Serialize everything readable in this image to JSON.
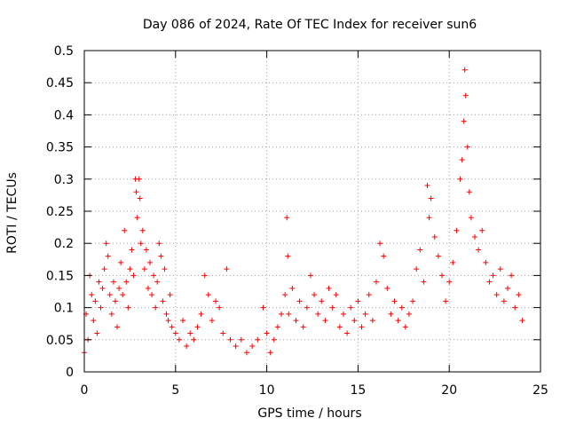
{
  "chart_data": {
    "type": "scatter",
    "title": "Day 086 of 2024, Rate Of TEC Index for receiver sun6",
    "xlabel": "GPS time / hours",
    "ylabel": "ROTI / TECUs",
    "xlim": [
      0,
      25
    ],
    "ylim": [
      0,
      0.5
    ],
    "xticks": [
      "0",
      "5",
      "10",
      "15",
      "20",
      "25"
    ],
    "yticks": [
      "0",
      "0.05",
      "0.1",
      "0.15",
      "0.2",
      "0.25",
      "0.3",
      "0.35",
      "0.4",
      "0.45",
      "0.5"
    ],
    "grid": true,
    "marker": "+",
    "color": "#ff0000",
    "series": [
      {
        "values": [
          [
            0.0,
            0.03
          ],
          [
            0.1,
            0.09
          ],
          [
            0.2,
            0.05
          ],
          [
            0.3,
            0.15
          ],
          [
            0.4,
            0.12
          ],
          [
            0.5,
            0.08
          ],
          [
            0.6,
            0.11
          ],
          [
            0.7,
            0.06
          ],
          [
            0.8,
            0.14
          ],
          [
            0.9,
            0.1
          ],
          [
            1.0,
            0.13
          ],
          [
            1.1,
            0.16
          ],
          [
            1.2,
            0.2
          ],
          [
            1.3,
            0.18
          ],
          [
            1.4,
            0.12
          ],
          [
            1.5,
            0.09
          ],
          [
            1.6,
            0.14
          ],
          [
            1.7,
            0.11
          ],
          [
            1.8,
            0.07
          ],
          [
            1.9,
            0.13
          ],
          [
            2.0,
            0.17
          ],
          [
            2.1,
            0.12
          ],
          [
            2.2,
            0.22
          ],
          [
            2.3,
            0.14
          ],
          [
            2.4,
            0.1
          ],
          [
            2.5,
            0.16
          ],
          [
            2.6,
            0.19
          ],
          [
            2.7,
            0.15
          ],
          [
            2.8,
            0.3
          ],
          [
            2.85,
            0.28
          ],
          [
            2.9,
            0.24
          ],
          [
            3.0,
            0.3
          ],
          [
            3.05,
            0.27
          ],
          [
            3.1,
            0.2
          ],
          [
            3.2,
            0.22
          ],
          [
            3.3,
            0.16
          ],
          [
            3.4,
            0.19
          ],
          [
            3.5,
            0.13
          ],
          [
            3.6,
            0.17
          ],
          [
            3.7,
            0.12
          ],
          [
            3.8,
            0.15
          ],
          [
            3.9,
            0.1
          ],
          [
            4.0,
            0.14
          ],
          [
            4.1,
            0.2
          ],
          [
            4.2,
            0.18
          ],
          [
            4.3,
            0.11
          ],
          [
            4.4,
            0.16
          ],
          [
            4.5,
            0.09
          ],
          [
            4.6,
            0.08
          ],
          [
            4.7,
            0.12
          ],
          [
            4.8,
            0.07
          ],
          [
            5.0,
            0.06
          ],
          [
            5.2,
            0.05
          ],
          [
            5.4,
            0.08
          ],
          [
            5.6,
            0.04
          ],
          [
            5.8,
            0.06
          ],
          [
            6.0,
            0.05
          ],
          [
            6.2,
            0.07
          ],
          [
            6.4,
            0.09
          ],
          [
            6.6,
            0.15
          ],
          [
            6.8,
            0.12
          ],
          [
            7.0,
            0.08
          ],
          [
            7.2,
            0.11
          ],
          [
            7.4,
            0.1
          ],
          [
            7.6,
            0.06
          ],
          [
            7.8,
            0.16
          ],
          [
            8.0,
            0.05
          ],
          [
            8.3,
            0.04
          ],
          [
            8.6,
            0.05
          ],
          [
            8.9,
            0.03
          ],
          [
            9.2,
            0.04
          ],
          [
            9.5,
            0.05
          ],
          [
            9.8,
            0.1
          ],
          [
            10.0,
            0.06
          ],
          [
            10.2,
            0.03
          ],
          [
            10.4,
            0.05
          ],
          [
            10.6,
            0.07
          ],
          [
            10.8,
            0.09
          ],
          [
            11.0,
            0.12
          ],
          [
            11.1,
            0.24
          ],
          [
            11.15,
            0.18
          ],
          [
            11.2,
            0.09
          ],
          [
            11.4,
            0.13
          ],
          [
            11.6,
            0.08
          ],
          [
            11.8,
            0.11
          ],
          [
            12.0,
            0.07
          ],
          [
            12.2,
            0.1
          ],
          [
            12.4,
            0.15
          ],
          [
            12.6,
            0.12
          ],
          [
            12.8,
            0.09
          ],
          [
            13.0,
            0.11
          ],
          [
            13.2,
            0.08
          ],
          [
            13.4,
            0.13
          ],
          [
            13.6,
            0.1
          ],
          [
            13.8,
            0.12
          ],
          [
            14.0,
            0.07
          ],
          [
            14.2,
            0.09
          ],
          [
            14.4,
            0.06
          ],
          [
            14.6,
            0.1
          ],
          [
            14.8,
            0.08
          ],
          [
            15.0,
            0.11
          ],
          [
            15.2,
            0.07
          ],
          [
            15.4,
            0.09
          ],
          [
            15.6,
            0.12
          ],
          [
            15.8,
            0.08
          ],
          [
            16.0,
            0.14
          ],
          [
            16.2,
            0.2
          ],
          [
            16.4,
            0.18
          ],
          [
            16.6,
            0.13
          ],
          [
            16.8,
            0.09
          ],
          [
            17.0,
            0.11
          ],
          [
            17.2,
            0.08
          ],
          [
            17.4,
            0.1
          ],
          [
            17.6,
            0.07
          ],
          [
            17.8,
            0.09
          ],
          [
            18.0,
            0.11
          ],
          [
            18.2,
            0.16
          ],
          [
            18.4,
            0.19
          ],
          [
            18.6,
            0.14
          ],
          [
            18.8,
            0.29
          ],
          [
            18.9,
            0.24
          ],
          [
            19.0,
            0.27
          ],
          [
            19.2,
            0.21
          ],
          [
            19.4,
            0.18
          ],
          [
            19.6,
            0.15
          ],
          [
            19.8,
            0.11
          ],
          [
            20.0,
            0.14
          ],
          [
            20.2,
            0.17
          ],
          [
            20.4,
            0.22
          ],
          [
            20.6,
            0.3
          ],
          [
            20.7,
            0.33
          ],
          [
            20.8,
            0.39
          ],
          [
            20.85,
            0.47
          ],
          [
            20.9,
            0.43
          ],
          [
            21.0,
            0.35
          ],
          [
            21.1,
            0.28
          ],
          [
            21.2,
            0.24
          ],
          [
            21.4,
            0.21
          ],
          [
            21.6,
            0.19
          ],
          [
            21.8,
            0.22
          ],
          [
            22.0,
            0.17
          ],
          [
            22.2,
            0.14
          ],
          [
            22.4,
            0.15
          ],
          [
            22.6,
            0.12
          ],
          [
            22.8,
            0.16
          ],
          [
            23.0,
            0.11
          ],
          [
            23.2,
            0.13
          ],
          [
            23.4,
            0.15
          ],
          [
            23.6,
            0.1
          ],
          [
            23.8,
            0.12
          ],
          [
            24.0,
            0.08
          ]
        ]
      }
    ]
  }
}
